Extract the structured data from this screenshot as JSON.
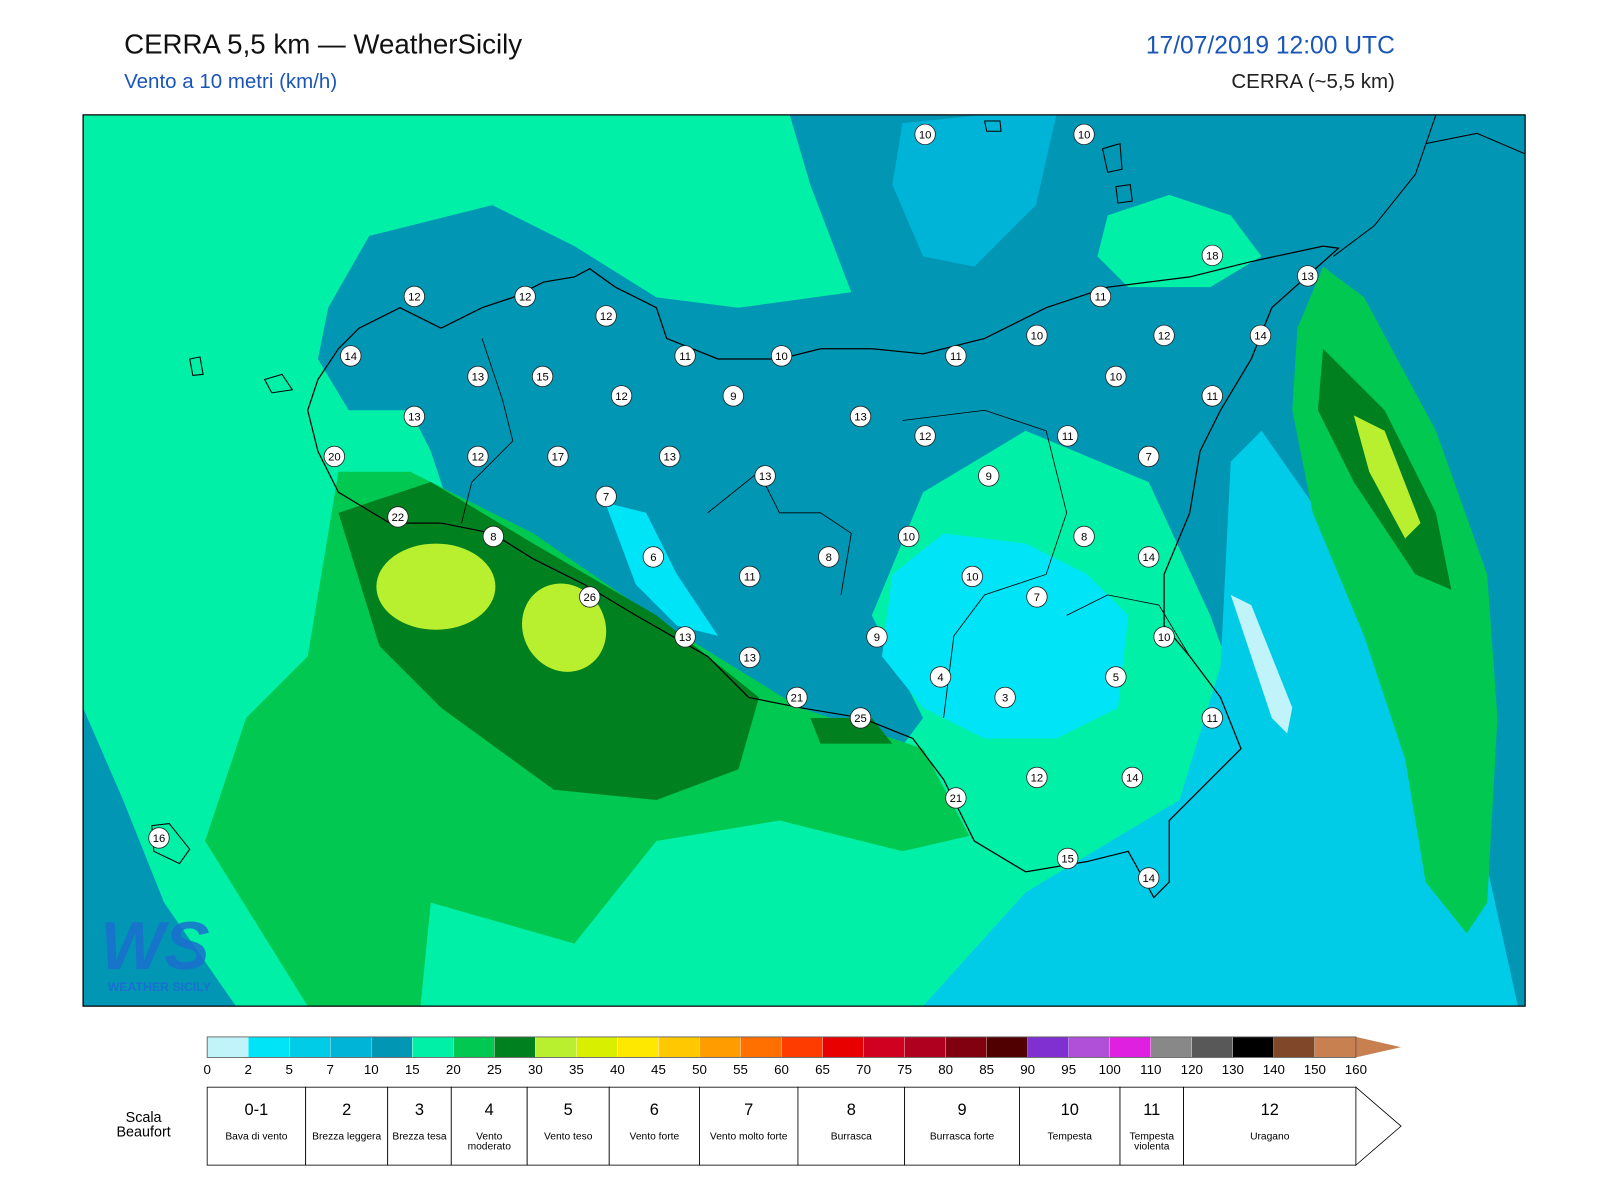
{
  "header": {
    "title": "CERRA 5,5 km — WeatherSicily",
    "subtitle": "Vento a 10 metri (km/h)",
    "date": "17/07/2019 12:00 UTC",
    "model": "CERRA (~5,5 km)"
  },
  "map": {
    "station_values": [
      10,
      10,
      18,
      13,
      12,
      12,
      12,
      11,
      14,
      11,
      10,
      11,
      10,
      12,
      14,
      13,
      15,
      12,
      9,
      10,
      11,
      13,
      13,
      20,
      12,
      17,
      13,
      12,
      11,
      7,
      9,
      13,
      7,
      22,
      8,
      10,
      8,
      6,
      8,
      14,
      11,
      10,
      26,
      7,
      13,
      9,
      10,
      13,
      4,
      5,
      3,
      21,
      25,
      11,
      12,
      14,
      21,
      16,
      15,
      14
    ]
  },
  "logo": {
    "mark": "WS",
    "name": "WEATHER SICILY"
  },
  "colorbar": {
    "ticks": [
      0,
      2,
      5,
      7,
      10,
      15,
      20,
      25,
      30,
      35,
      40,
      45,
      50,
      55,
      60,
      65,
      70,
      75,
      80,
      85,
      90,
      95,
      100,
      110,
      120,
      130,
      140,
      150,
      160
    ],
    "colors": [
      "#c0f4fa",
      "#00e4f8",
      "#00cce8",
      "#00b4d8",
      "#0096b4",
      "#00f0a8",
      "#00c850",
      "#00801e",
      "#b8f030",
      "#d8f000",
      "#ffe800",
      "#ffc800",
      "#ff9c00",
      "#ff7000",
      "#ff3c00",
      "#e80000",
      "#d00020",
      "#b00020",
      "#800010",
      "#500000",
      "#8030d0",
      "#b050d8",
      "#e020e0",
      "#888888",
      "#585858",
      "#000000",
      "#804828",
      "#c88050"
    ]
  },
  "beaufort": {
    "label": "Scala Beaufort",
    "levels": [
      {
        "force": "0-1",
        "description": "Bava di vento"
      },
      {
        "force": "2",
        "description": "Brezza leggera"
      },
      {
        "force": "3",
        "description": "Brezza tesa"
      },
      {
        "force": "4",
        "description": "Vento moderato"
      },
      {
        "force": "5",
        "description": "Vento teso"
      },
      {
        "force": "6",
        "description": "Vento forte"
      },
      {
        "force": "7",
        "description": "Vento molto forte"
      },
      {
        "force": "8",
        "description": "Burrasca"
      },
      {
        "force": "9",
        "description": "Burrasca forte"
      },
      {
        "force": "10",
        "description": "Tempesta"
      },
      {
        "force": "11",
        "description": "Tempesta violenta"
      },
      {
        "force": "12",
        "description": "Uragano"
      }
    ]
  }
}
